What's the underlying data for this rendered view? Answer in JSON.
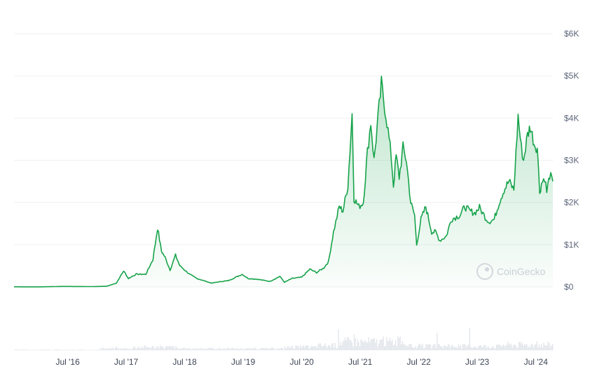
{
  "watermark": "CoinGecko",
  "colors": {
    "line": "#16a34a",
    "area_top": "#16a34a",
    "grid": "#eef0f3",
    "volume": "#e3e6eb"
  },
  "chart_data": {
    "type": "area",
    "title": "",
    "xlabel": "",
    "ylabel": "",
    "ylim": [
      0,
      6000
    ],
    "y_ticks": [
      0,
      1000,
      2000,
      3000,
      4000,
      5000,
      6000
    ],
    "y_tick_labels": [
      "$0",
      "$1K",
      "$2K",
      "$3K",
      "$4K",
      "$5K",
      "$6K"
    ],
    "x_range": [
      "2015-08-01",
      "2024-10-15"
    ],
    "x_ticks": [
      "2016-07-01",
      "2017-07-01",
      "2018-07-01",
      "2019-07-01",
      "2020-07-01",
      "2021-07-01",
      "2022-07-01",
      "2023-07-01",
      "2024-07-01"
    ],
    "x_tick_labels": [
      "Jul '16",
      "Jul '17",
      "Jul '18",
      "Jul '19",
      "Jul '20",
      "Jul '21",
      "Jul '22",
      "Jul '23",
      "Jul '24"
    ],
    "grid": true,
    "series": [
      {
        "x": [
          "2015-08-01",
          "2016-01-01",
          "2016-06-01",
          "2016-12-01",
          "2017-03-01",
          "2017-05-01",
          "2017-06-15",
          "2017-07-15",
          "2017-09-01",
          "2017-11-01",
          "2017-12-15",
          "2018-01-13",
          "2018-02-06",
          "2018-03-01",
          "2018-04-01",
          "2018-05-05",
          "2018-06-01",
          "2018-08-01",
          "2018-09-15",
          "2018-12-15",
          "2019-02-01",
          "2019-04-01",
          "2019-06-25",
          "2019-08-01",
          "2019-10-01",
          "2019-12-15",
          "2020-02-15",
          "2020-03-15",
          "2020-05-01",
          "2020-07-01",
          "2020-08-20",
          "2020-10-01",
          "2020-11-15",
          "2020-12-15",
          "2021-01-15",
          "2021-02-20",
          "2021-03-15",
          "2021-04-15",
          "2021-05-11",
          "2021-05-23",
          "2021-06-22",
          "2021-07-20",
          "2021-08-15",
          "2021-09-05",
          "2021-09-25",
          "2021-10-20",
          "2021-11-10",
          "2021-12-15",
          "2022-01-10",
          "2022-01-24",
          "2022-02-10",
          "2022-03-01",
          "2022-03-25",
          "2022-04-15",
          "2022-05-12",
          "2022-06-05",
          "2022-06-18",
          "2022-07-15",
          "2022-08-14",
          "2022-09-20",
          "2022-10-15",
          "2022-11-09",
          "2022-12-20",
          "2023-01-20",
          "2023-02-15",
          "2023-03-15",
          "2023-04-15",
          "2023-05-15",
          "2023-06-15",
          "2023-07-15",
          "2023-08-20",
          "2023-09-11",
          "2023-10-15",
          "2023-11-15",
          "2023-12-15",
          "2024-01-15",
          "2024-02-15",
          "2024-03-12",
          "2024-04-01",
          "2024-04-15",
          "2024-05-10",
          "2024-05-27",
          "2024-06-20",
          "2024-07-10",
          "2024-07-25",
          "2024-08-05",
          "2024-08-25",
          "2024-09-07",
          "2024-09-25",
          "2024-10-15"
        ],
        "values": [
          3,
          1,
          12,
          8,
          15,
          90,
          380,
          200,
          300,
          300,
          650,
          1400,
          850,
          700,
          400,
          750,
          500,
          300,
          200,
          90,
          120,
          150,
          300,
          200,
          180,
          130,
          250,
          110,
          200,
          230,
          420,
          340,
          450,
          600,
          1300,
          1900,
          1800,
          2400,
          4100,
          2100,
          1900,
          2000,
          3200,
          3900,
          3000,
          4000,
          4800,
          3900,
          3100,
          2400,
          3100,
          2600,
          3300,
          3000,
          2000,
          1700,
          1000,
          1600,
          1900,
          1300,
          1300,
          1100,
          1200,
          1600,
          1650,
          1700,
          1900,
          1800,
          1750,
          1880,
          1650,
          1550,
          1600,
          2000,
          2300,
          2500,
          2300,
          4050,
          3300,
          3000,
          3600,
          3800,
          3400,
          3300,
          2250,
          2450,
          2600,
          2250,
          2650,
          2500
        ]
      }
    ],
    "volume_note": "small volume histogram below the price area"
  }
}
